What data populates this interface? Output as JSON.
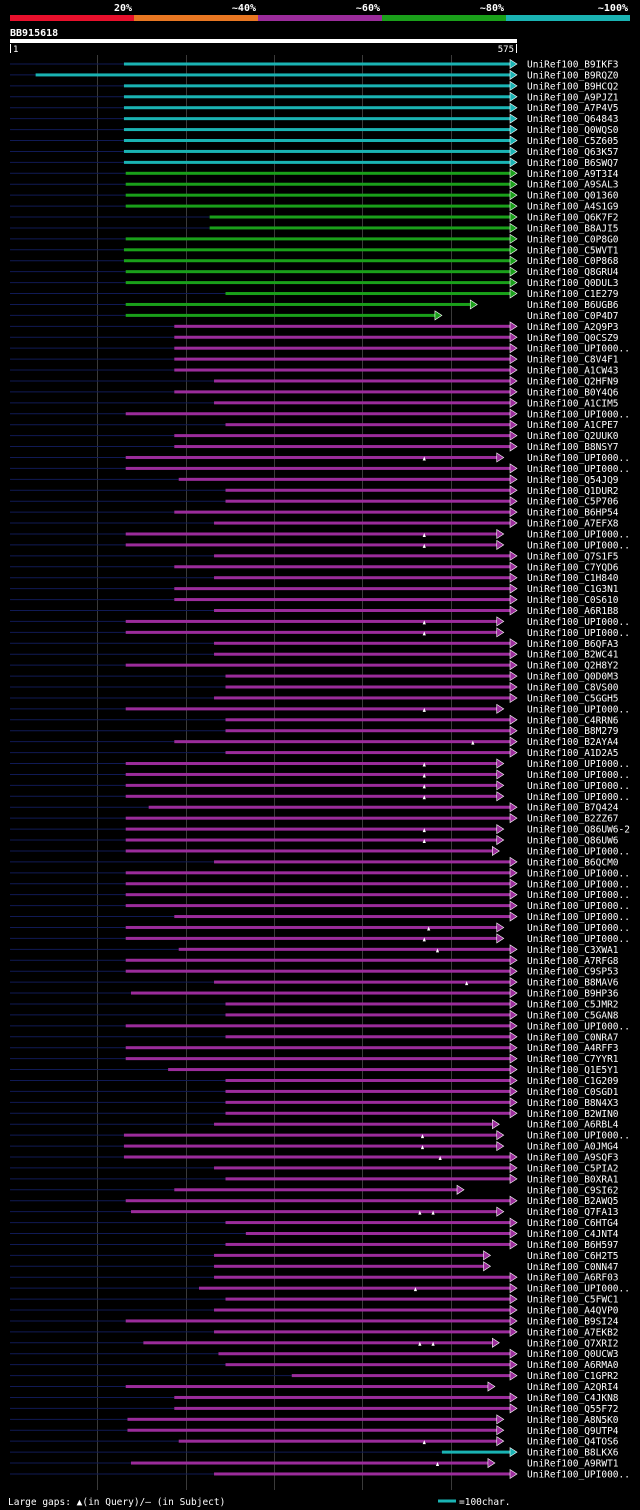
{
  "chart_data": {
    "type": "alignment-overview",
    "title": "BB915618",
    "query_length": 575,
    "axis_start": "1",
    "axis_end": "575",
    "identity_legend": [
      {
        "label": "20%",
        "color": "#e8102c"
      },
      {
        "label": "~40%",
        "color": "#e87722"
      },
      {
        "label": "~60%",
        "color": "#9b2c9b"
      },
      {
        "label": "~80%",
        "color": "#1aa01a"
      },
      {
        "label": "~100%",
        "color": "#1ab3b3"
      }
    ],
    "footer_left": "Large gaps: ▲(in Query)/— (in Subject)",
    "footer_right": "=100char.",
    "hits": [
      {
        "name": "UniRef100_B9IKF3",
        "start": 130,
        "end": 575,
        "group": 4
      },
      {
        "name": "UniRef100_B9RQZ0",
        "start": 30,
        "end": 575,
        "group": 4
      },
      {
        "name": "UniRef100_B9HCQ2",
        "start": 130,
        "end": 575,
        "group": 4
      },
      {
        "name": "UniRef100_A9PJZ1",
        "start": 130,
        "end": 575,
        "group": 4
      },
      {
        "name": "UniRef100_A7P4V5",
        "start": 130,
        "end": 575,
        "group": 4
      },
      {
        "name": "UniRef100_Q64843",
        "start": 130,
        "end": 575,
        "group": 4
      },
      {
        "name": "UniRef100_Q0WQS0",
        "start": 130,
        "end": 575,
        "group": 4
      },
      {
        "name": "UniRef100_C5Z605",
        "start": 130,
        "end": 575,
        "group": 4
      },
      {
        "name": "UniRef100_Q63K57",
        "start": 130,
        "end": 575,
        "group": 4
      },
      {
        "name": "UniRef100_B6SWQ7",
        "start": 130,
        "end": 575,
        "group": 4
      },
      {
        "name": "UniRef100_A9T3I4",
        "start": 132,
        "end": 575,
        "group": 3
      },
      {
        "name": "UniRef100_A9SAL3",
        "start": 132,
        "end": 575,
        "group": 3
      },
      {
        "name": "UniRef100_Q01360",
        "start": 132,
        "end": 575,
        "group": 3
      },
      {
        "name": "UniRef100_A4S1G9",
        "start": 132,
        "end": 575,
        "group": 3
      },
      {
        "name": "UniRef100_Q6K7F2",
        "start": 227,
        "end": 575,
        "group": 3
      },
      {
        "name": "UniRef100_B8AJI5",
        "start": 227,
        "end": 575,
        "group": 3
      },
      {
        "name": "UniRef100_C0P8G0",
        "start": 132,
        "end": 575,
        "group": 3
      },
      {
        "name": "UniRef100_C5WVT1",
        "start": 130,
        "end": 575,
        "group": 3
      },
      {
        "name": "UniRef100_C0P868",
        "start": 130,
        "end": 575,
        "group": 3
      },
      {
        "name": "UniRef100_Q8GRU4",
        "start": 132,
        "end": 575,
        "group": 3
      },
      {
        "name": "UniRef100_Q0DUL3",
        "start": 132,
        "end": 575,
        "group": 3
      },
      {
        "name": "UniRef100_C1E279",
        "start": 245,
        "end": 575,
        "group": 3
      },
      {
        "name": "UniRef100_B6UGB6",
        "start": 132,
        "end": 530,
        "group": 3
      },
      {
        "name": "UniRef100_C0P4D7",
        "start": 132,
        "end": 490,
        "group": 3
      },
      {
        "name": "UniRef100_A2Q9P3",
        "start": 187,
        "end": 575,
        "group": 2
      },
      {
        "name": "UniRef100_Q0CSZ9",
        "start": 187,
        "end": 575,
        "group": 2
      },
      {
        "name": "UniRef100_UPI000..",
        "start": 187,
        "end": 575,
        "group": 2
      },
      {
        "name": "UniRef100_C8V4F1",
        "start": 187,
        "end": 575,
        "group": 2
      },
      {
        "name": "UniRef100_A1CW43",
        "start": 187,
        "end": 575,
        "group": 2
      },
      {
        "name": "UniRef100_Q2HFN9",
        "start": 232,
        "end": 575,
        "group": 2
      },
      {
        "name": "UniRef100_B0Y4Q6",
        "start": 187,
        "end": 575,
        "group": 2
      },
      {
        "name": "UniRef100_A1CIM5",
        "start": 232,
        "end": 575,
        "group": 2
      },
      {
        "name": "UniRef100_UPI000..",
        "start": 132,
        "end": 575,
        "group": 2
      },
      {
        "name": "UniRef100_A1CPE7",
        "start": 245,
        "end": 575,
        "group": 2
      },
      {
        "name": "UniRef100_Q2UUK0",
        "start": 187,
        "end": 575,
        "group": 2
      },
      {
        "name": "UniRef100_B8NSY7",
        "start": 187,
        "end": 575,
        "group": 2
      },
      {
        "name": "UniRef100_UPI000..",
        "start": 132,
        "end": 560,
        "group": 2,
        "gaps": [
          470
        ]
      },
      {
        "name": "UniRef100_UPI000..",
        "start": 132,
        "end": 575,
        "group": 2
      },
      {
        "name": "UniRef100_Q54JQ9",
        "start": 192,
        "end": 575,
        "group": 2
      },
      {
        "name": "UniRef100_Q1DUR2",
        "start": 245,
        "end": 575,
        "group": 2
      },
      {
        "name": "UniRef100_C5P706",
        "start": 245,
        "end": 575,
        "group": 2
      },
      {
        "name": "UniRef100_B6HP54",
        "start": 187,
        "end": 575,
        "group": 2
      },
      {
        "name": "UniRef100_A7EFX8",
        "start": 232,
        "end": 575,
        "group": 2
      },
      {
        "name": "UniRef100_UPI000..",
        "start": 132,
        "end": 560,
        "group": 2,
        "gaps": [
          470
        ]
      },
      {
        "name": "UniRef100_UPI000..",
        "start": 132,
        "end": 560,
        "group": 2,
        "gaps": [
          470
        ]
      },
      {
        "name": "UniRef100_Q7S1F5",
        "start": 232,
        "end": 575,
        "group": 2
      },
      {
        "name": "UniRef100_C7YQD6",
        "start": 187,
        "end": 575,
        "group": 2
      },
      {
        "name": "UniRef100_C1H840",
        "start": 232,
        "end": 575,
        "group": 2
      },
      {
        "name": "UniRef100_C1G3N1",
        "start": 187,
        "end": 575,
        "group": 2
      },
      {
        "name": "UniRef100_C0S610",
        "start": 187,
        "end": 575,
        "group": 2
      },
      {
        "name": "UniRef100_A6R1B8",
        "start": 232,
        "end": 575,
        "group": 2
      },
      {
        "name": "UniRef100_UPI000..",
        "start": 132,
        "end": 560,
        "group": 2,
        "gaps": [
          470
        ]
      },
      {
        "name": "UniRef100_UPI000..",
        "start": 132,
        "end": 560,
        "group": 2,
        "gaps": [
          470
        ]
      },
      {
        "name": "UniRef100_B6QFA3",
        "start": 232,
        "end": 575,
        "group": 2
      },
      {
        "name": "UniRef100_B2WC41",
        "start": 232,
        "end": 575,
        "group": 2
      },
      {
        "name": "UniRef100_Q2H8Y2",
        "start": 132,
        "end": 575,
        "group": 2
      },
      {
        "name": "UniRef100_Q0D0M3",
        "start": 245,
        "end": 575,
        "group": 2
      },
      {
        "name": "UniRef100_C8VS00",
        "start": 245,
        "end": 575,
        "group": 2
      },
      {
        "name": "UniRef100_C5GGH5",
        "start": 232,
        "end": 575,
        "group": 2
      },
      {
        "name": "UniRef100_UPI000..",
        "start": 132,
        "end": 560,
        "group": 2,
        "gaps": [
          470
        ]
      },
      {
        "name": "UniRef100_C4RRN6",
        "start": 245,
        "end": 575,
        "group": 2
      },
      {
        "name": "UniRef100_B8M279",
        "start": 245,
        "end": 575,
        "group": 2
      },
      {
        "name": "UniRef100_B2AYA4",
        "start": 187,
        "end": 575,
        "group": 2,
        "gaps": [
          525
        ]
      },
      {
        "name": "UniRef100_A1D2A5",
        "start": 245,
        "end": 575,
        "group": 2
      },
      {
        "name": "UniRef100_UPI000..",
        "start": 132,
        "end": 560,
        "group": 2,
        "gaps": [
          470
        ]
      },
      {
        "name": "UniRef100_UPI000..",
        "start": 132,
        "end": 560,
        "group": 2,
        "gaps": [
          470
        ]
      },
      {
        "name": "UniRef100_UPI000..",
        "start": 132,
        "end": 560,
        "group": 2,
        "gaps": [
          470
        ]
      },
      {
        "name": "UniRef100_UPI000..",
        "start": 132,
        "end": 560,
        "group": 2,
        "gaps": [
          470
        ]
      },
      {
        "name": "UniRef100_B7Q424",
        "start": 158,
        "end": 575,
        "group": 2
      },
      {
        "name": "UniRef100_B2ZZ67",
        "start": 132,
        "end": 575,
        "group": 2
      },
      {
        "name": "UniRef100_Q86UW6-2",
        "start": 132,
        "end": 560,
        "group": 2,
        "gaps": [
          470
        ]
      },
      {
        "name": "UniRef100_Q86UW6",
        "start": 132,
        "end": 560,
        "group": 2,
        "gaps": [
          470
        ]
      },
      {
        "name": "UniRef100_UPI000..",
        "start": 132,
        "end": 555,
        "group": 2
      },
      {
        "name": "UniRef100_B6QCM0",
        "start": 232,
        "end": 575,
        "group": 2
      },
      {
        "name": "UniRef100_UPI000..",
        "start": 132,
        "end": 575,
        "group": 2
      },
      {
        "name": "UniRef100_UPI000..",
        "start": 132,
        "end": 575,
        "group": 2
      },
      {
        "name": "UniRef100_UPI000..",
        "start": 132,
        "end": 575,
        "group": 2
      },
      {
        "name": "UniRef100_UPI000..",
        "start": 132,
        "end": 575,
        "group": 2
      },
      {
        "name": "UniRef100_UPI000..",
        "start": 187,
        "end": 575,
        "group": 2
      },
      {
        "name": "UniRef100_UPI000..",
        "start": 132,
        "end": 560,
        "group": 2,
        "gaps": [
          475
        ]
      },
      {
        "name": "UniRef100_UPI000..",
        "start": 132,
        "end": 560,
        "group": 2,
        "gaps": [
          470
        ]
      },
      {
        "name": "UniRef100_C3XWA1",
        "start": 192,
        "end": 575,
        "group": 2,
        "gaps": [
          485
        ]
      },
      {
        "name": "UniRef100_A7RFG8",
        "start": 132,
        "end": 575,
        "group": 2
      },
      {
        "name": "UniRef100_C9SP53",
        "start": 132,
        "end": 575,
        "group": 2
      },
      {
        "name": "UniRef100_B8MAV6",
        "start": 232,
        "end": 575,
        "group": 2,
        "gaps": [
          518
        ]
      },
      {
        "name": "UniRef100_B9HP36",
        "start": 138,
        "end": 575,
        "group": 2
      },
      {
        "name": "UniRef100_C5JMR2",
        "start": 245,
        "end": 575,
        "group": 2
      },
      {
        "name": "UniRef100_C5GAN8",
        "start": 245,
        "end": 575,
        "group": 2
      },
      {
        "name": "UniRef100_UPI000..",
        "start": 132,
        "end": 575,
        "group": 2
      },
      {
        "name": "UniRef100_C0NRA7",
        "start": 245,
        "end": 575,
        "group": 2
      },
      {
        "name": "UniRef100_A4RFF3",
        "start": 132,
        "end": 575,
        "group": 2
      },
      {
        "name": "UniRef100_C7YYR1",
        "start": 132,
        "end": 575,
        "group": 2
      },
      {
        "name": "UniRef100_Q1E5Y1",
        "start": 180,
        "end": 575,
        "group": 2
      },
      {
        "name": "UniRef100_C1G209",
        "start": 245,
        "end": 575,
        "group": 2
      },
      {
        "name": "UniRef100_C0SGD1",
        "start": 245,
        "end": 575,
        "group": 2
      },
      {
        "name": "UniRef100_B8N4X3",
        "start": 245,
        "end": 575,
        "group": 2
      },
      {
        "name": "UniRef100_B2WIN0",
        "start": 245,
        "end": 575,
        "group": 2
      },
      {
        "name": "UniRef100_A6RBL4",
        "start": 232,
        "end": 555,
        "group": 2
      },
      {
        "name": "UniRef100_UPI000..",
        "start": 130,
        "end": 560,
        "group": 2,
        "gaps": [
          468
        ]
      },
      {
        "name": "UniRef100_A0JMG4",
        "start": 130,
        "end": 560,
        "group": 2,
        "gaps": [
          468
        ]
      },
      {
        "name": "UniRef100_A9SQF3",
        "start": 130,
        "end": 575,
        "group": 2,
        "gaps": [
          488
        ]
      },
      {
        "name": "UniRef100_C5PIA2",
        "start": 232,
        "end": 575,
        "group": 2
      },
      {
        "name": "UniRef100_B0XRA1",
        "start": 245,
        "end": 575,
        "group": 2
      },
      {
        "name": "UniRef100_C9SI62",
        "start": 187,
        "end": 515,
        "group": 2
      },
      {
        "name": "UniRef100_B2AWQ5",
        "start": 132,
        "end": 575,
        "group": 2
      },
      {
        "name": "UniRef100_Q7FA13",
        "start": 138,
        "end": 560,
        "group": 2,
        "gaps": [
          465,
          480
        ]
      },
      {
        "name": "UniRef100_C6HTG4",
        "start": 245,
        "end": 575,
        "group": 2
      },
      {
        "name": "UniRef100_C4JNT4",
        "start": 268,
        "end": 575,
        "group": 2
      },
      {
        "name": "UniRef100_B6H597",
        "start": 245,
        "end": 575,
        "group": 2
      },
      {
        "name": "UniRef100_C6H2T5",
        "start": 232,
        "end": 545,
        "group": 2
      },
      {
        "name": "UniRef100_C0NN47",
        "start": 232,
        "end": 545,
        "group": 2
      },
      {
        "name": "UniRef100_A6RF03",
        "start": 232,
        "end": 575,
        "group": 2
      },
      {
        "name": "UniRef100_UPI000..",
        "start": 215,
        "end": 575,
        "group": 2,
        "gaps": [
          460
        ]
      },
      {
        "name": "UniRef100_C5FWC1",
        "start": 245,
        "end": 575,
        "group": 2
      },
      {
        "name": "UniRef100_A4QVP0",
        "start": 232,
        "end": 575,
        "group": 2
      },
      {
        "name": "UniRef100_B9SI24",
        "start": 132,
        "end": 575,
        "group": 2
      },
      {
        "name": "UniRef100_A7EKB2",
        "start": 232,
        "end": 575,
        "group": 2
      },
      {
        "name": "UniRef100_Q7XRI2",
        "start": 152,
        "end": 555,
        "group": 2,
        "gaps": [
          465,
          480
        ]
      },
      {
        "name": "UniRef100_Q0UCW3",
        "start": 237,
        "end": 575,
        "group": 2
      },
      {
        "name": "UniRef100_A6RMA0",
        "start": 245,
        "end": 575,
        "group": 2
      },
      {
        "name": "UniRef100_C1GPR2",
        "start": 320,
        "end": 575,
        "group": 2
      },
      {
        "name": "UniRef100_A2QRI4",
        "start": 132,
        "end": 550,
        "group": 2
      },
      {
        "name": "UniRef100_C4JKN8",
        "start": 187,
        "end": 575,
        "group": 2
      },
      {
        "name": "UniRef100_Q55F72",
        "start": 187,
        "end": 575,
        "group": 2
      },
      {
        "name": "UniRef100_A8N5K0",
        "start": 134,
        "end": 560,
        "group": 2
      },
      {
        "name": "UniRef100_Q9UTP4",
        "start": 134,
        "end": 560,
        "group": 2
      },
      {
        "name": "UniRef100_Q4TOS6",
        "start": 192,
        "end": 560,
        "group": 2,
        "gaps": [
          470
        ]
      },
      {
        "name": "UniRef100_B8LKX6",
        "start": 490,
        "end": 575,
        "group": 4
      },
      {
        "name": "UniRef100_A9RWT1",
        "start": 138,
        "end": 550,
        "group": 2,
        "gaps": [
          485
        ]
      },
      {
        "name": "UniRef100_UPI000..",
        "start": 232,
        "end": 575,
        "group": 2
      }
    ]
  }
}
